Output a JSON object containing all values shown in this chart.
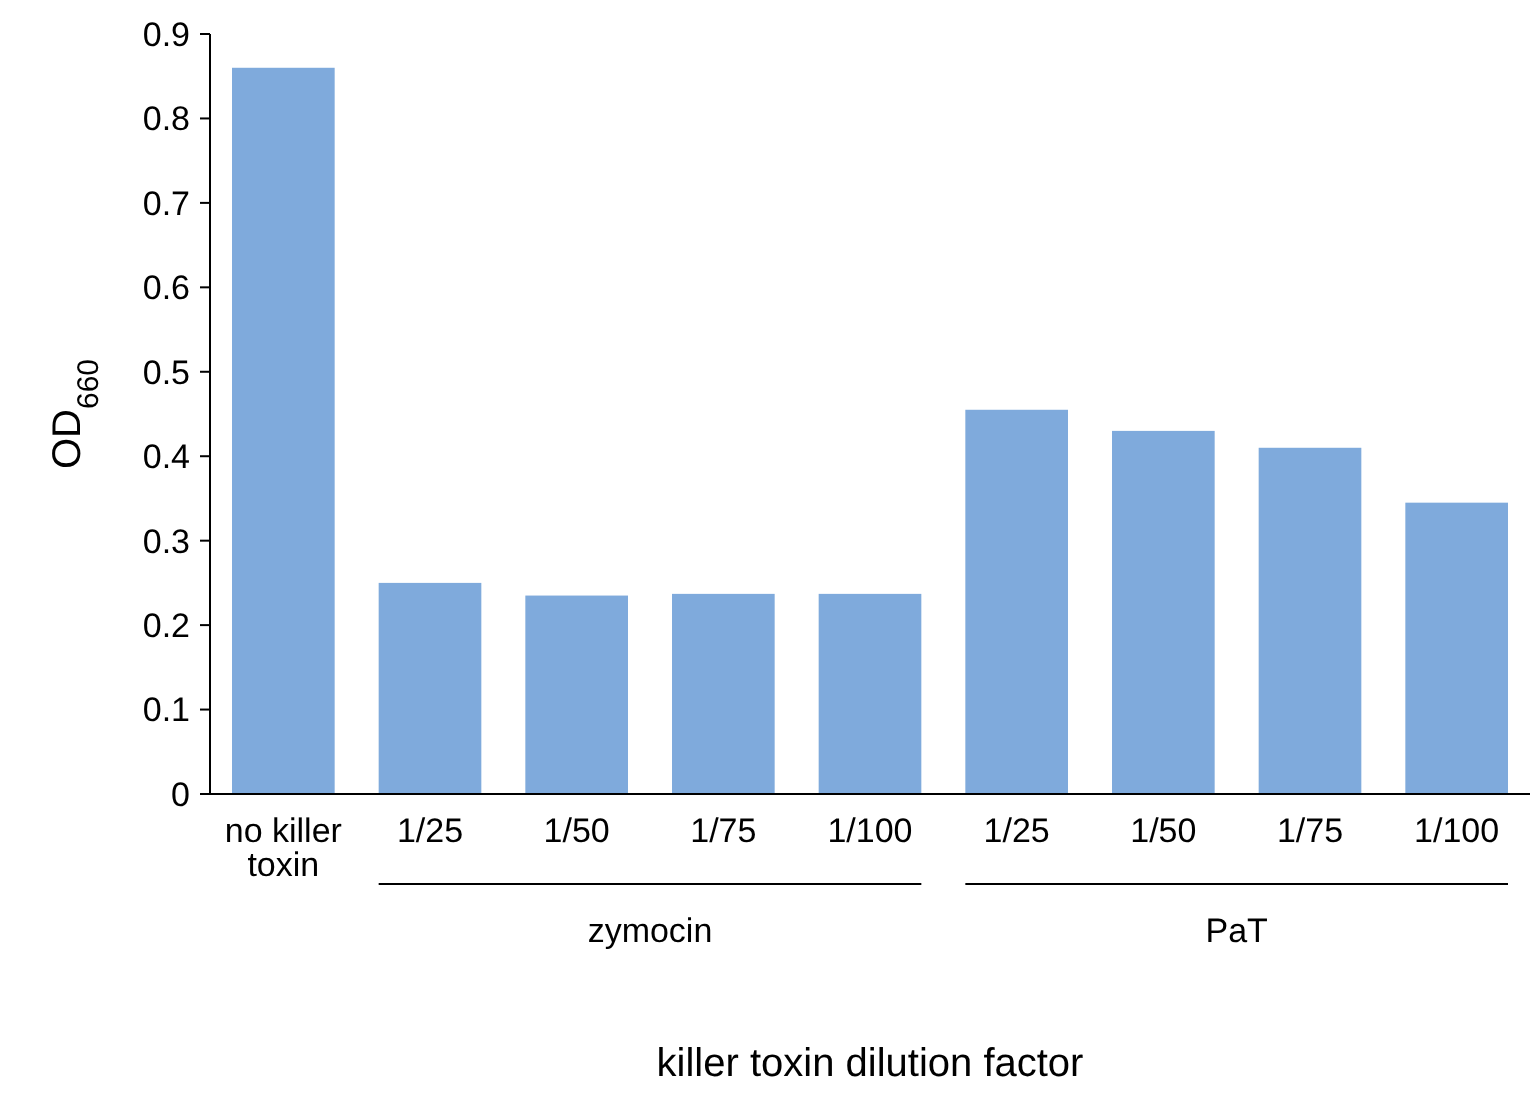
{
  "chart_data": {
    "type": "bar",
    "xlabel": "killer toxin dilution factor",
    "ylabel": "OD$_{660}$",
    "categories": [
      "no killer toxin",
      "1/25",
      "1/50",
      "1/75",
      "1/100",
      "1/25",
      "1/50",
      "1/75",
      "1/100"
    ],
    "values": [
      0.86,
      0.25,
      0.235,
      0.237,
      0.237,
      0.455,
      0.43,
      0.41,
      0.345
    ],
    "color": "#7faadc",
    "ylim": [
      0,
      0.9
    ],
    "yticks": [
      0,
      0.1,
      0.2,
      0.3,
      0.4,
      0.5,
      0.6,
      0.7,
      0.8,
      0.9
    ],
    "grid": false,
    "annotations": [
      "zymocin",
      "PaT"
    ]
  }
}
